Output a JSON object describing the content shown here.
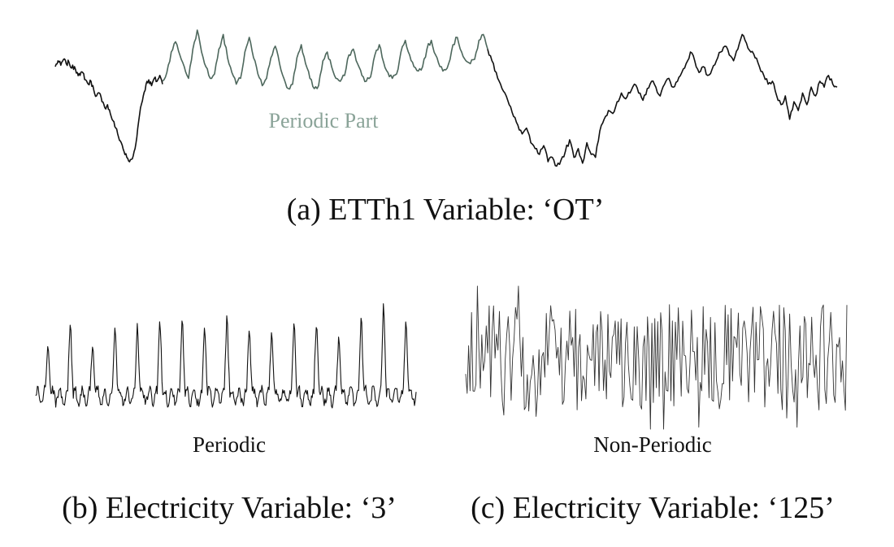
{
  "colors": {
    "series_dark": "#111111",
    "periodic_part": "#4d675c",
    "periodic_label": "#8aa398"
  },
  "chart_data": [
    {
      "type": "line",
      "caption": "(a) ETTh1 Variable: ‘OT’",
      "annotation": "Periodic Part",
      "grid": false,
      "axes_visible": false,
      "segments": [
        {
          "role": "non-periodic",
          "values": [
            0.7,
            0.74,
            0.71,
            0.75,
            0.72,
            0.73,
            0.69,
            0.7,
            0.66,
            0.64,
            0.66,
            0.61,
            0.58,
            0.6,
            0.54,
            0.5,
            0.52,
            0.46,
            0.42,
            0.44,
            0.38,
            0.33,
            0.28,
            0.22,
            0.18,
            0.12,
            0.08,
            0.05,
            0.07,
            0.14,
            0.28,
            0.42,
            0.5,
            0.58,
            0.61,
            0.57,
            0.62,
            0.6,
            0.64,
            0.58
          ]
        },
        {
          "role": "periodic",
          "values": [
            0.6,
            0.66,
            0.8,
            0.87,
            0.78,
            0.7,
            0.62,
            0.82,
            0.95,
            0.8,
            0.7,
            0.62,
            0.65,
            0.82,
            0.92,
            0.76,
            0.66,
            0.58,
            0.62,
            0.8,
            0.9,
            0.76,
            0.65,
            0.57,
            0.62,
            0.76,
            0.84,
            0.72,
            0.62,
            0.55,
            0.58,
            0.76,
            0.85,
            0.72,
            0.62,
            0.55,
            0.57,
            0.74,
            0.8,
            0.7,
            0.62,
            0.6,
            0.64,
            0.78,
            0.82,
            0.72,
            0.64,
            0.6,
            0.63,
            0.78,
            0.85,
            0.73,
            0.66,
            0.62,
            0.65,
            0.8,
            0.88,
            0.78,
            0.7,
            0.67,
            0.7,
            0.82,
            0.88,
            0.78,
            0.7,
            0.68,
            0.72,
            0.85,
            0.9,
            0.8,
            0.74,
            0.72,
            0.75,
            0.88,
            0.92,
            0.82
          ]
        },
        {
          "role": "non-periodic",
          "values": [
            0.82,
            0.74,
            0.66,
            0.58,
            0.52,
            0.44,
            0.36,
            0.3,
            0.24,
            0.28,
            0.18,
            0.14,
            0.1,
            0.16,
            0.05,
            0.08,
            0.02,
            0.06,
            0.12,
            0.2,
            0.08,
            0.14,
            0.04,
            0.18,
            0.1,
            0.08,
            0.26,
            0.34,
            0.4,
            0.38,
            0.46,
            0.52,
            0.48,
            0.52,
            0.58,
            0.52,
            0.47,
            0.55,
            0.6,
            0.56,
            0.5,
            0.58,
            0.62,
            0.56,
            0.6,
            0.66,
            0.72,
            0.8,
            0.74,
            0.66,
            0.7,
            0.64,
            0.68,
            0.74,
            0.8,
            0.84,
            0.78,
            0.74,
            0.82,
            0.92,
            0.86,
            0.8,
            0.76,
            0.7,
            0.64,
            0.58,
            0.6,
            0.5,
            0.44,
            0.5,
            0.34,
            0.46,
            0.4,
            0.52,
            0.44,
            0.56,
            0.5,
            0.6,
            0.56,
            0.64,
            0.58,
            0.56
          ]
        }
      ]
    },
    {
      "type": "line",
      "caption": "(b) Electricity Variable: ‘3’",
      "annotation": "Periodic",
      "grid": false,
      "axes_visible": false,
      "cycles": 17,
      "peak_heights": [
        0.6,
        0.82,
        0.55,
        0.8,
        0.78,
        0.86,
        0.84,
        0.8,
        0.88,
        0.74,
        0.72,
        0.78,
        0.82,
        0.68,
        0.86,
        1.0,
        0.82
      ]
    },
    {
      "type": "line",
      "caption": "(c) Electricity Variable: ‘125’",
      "annotation": "Non-Periodic",
      "grid": false,
      "axes_visible": false,
      "noise_points": 260,
      "noise_amplitude": 1.0
    }
  ]
}
